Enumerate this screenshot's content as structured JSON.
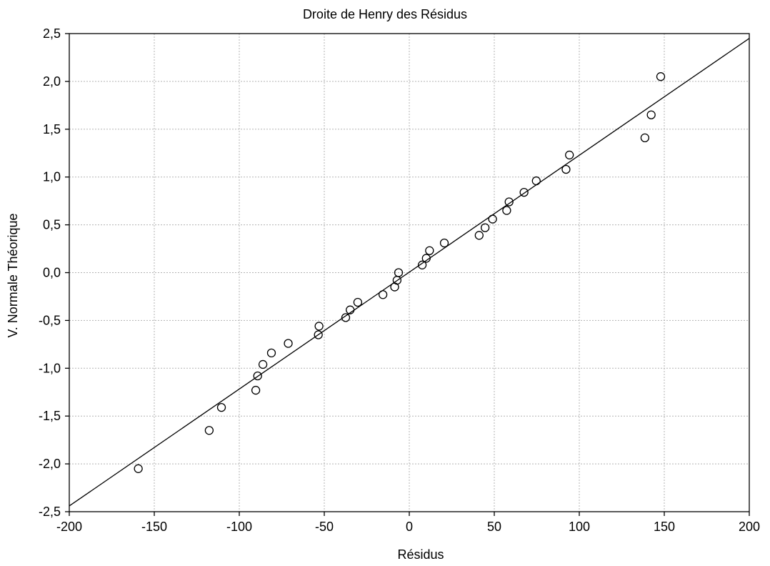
{
  "chart_data": {
    "type": "scatter",
    "title": "Droite de Henry des Résidus",
    "xlabel": "Résidus",
    "ylabel": "V. Normale Théorique",
    "xlim": [
      -200,
      200
    ],
    "ylim": [
      -2.5,
      2.5
    ],
    "xticks": [
      -200,
      -150,
      -100,
      -50,
      0,
      50,
      100,
      150,
      200
    ],
    "xtick_labels": [
      "-200",
      "-150",
      "-100",
      "-50",
      "0",
      "50",
      "100",
      "150",
      "200"
    ],
    "yticks": [
      -2.5,
      -2.0,
      -1.5,
      -1.0,
      -0.5,
      0.0,
      0.5,
      1.0,
      1.5,
      2.0,
      2.5
    ],
    "ytick_labels": [
      "-2,5",
      "-2,0",
      "-1,5",
      "-1,0",
      "-0,5",
      "0,0",
      "0,5",
      "1,0",
      "1,5",
      "2,0",
      "2,5"
    ],
    "grid": true,
    "marker": "open-circle",
    "points": [
      {
        "x": -159.4,
        "y": -2.05
      },
      {
        "x": -117.7,
        "y": -1.65
      },
      {
        "x": -110.5,
        "y": -1.41
      },
      {
        "x": -90.3,
        "y": -1.23
      },
      {
        "x": -89.2,
        "y": -1.08
      },
      {
        "x": -86.1,
        "y": -0.96
      },
      {
        "x": -81.1,
        "y": -0.84
      },
      {
        "x": -71.2,
        "y": -0.74
      },
      {
        "x": -53.5,
        "y": -0.65
      },
      {
        "x": -53.1,
        "y": -0.56
      },
      {
        "x": -37.4,
        "y": -0.47
      },
      {
        "x": -34.8,
        "y": -0.39
      },
      {
        "x": -30.3,
        "y": -0.31
      },
      {
        "x": -15.5,
        "y": -0.23
      },
      {
        "x": -8.6,
        "y": -0.15
      },
      {
        "x": -7.2,
        "y": -0.08
      },
      {
        "x": -6.3,
        "y": 0.0
      },
      {
        "x": 7.6,
        "y": 0.08
      },
      {
        "x": 10.0,
        "y": 0.15
      },
      {
        "x": 11.9,
        "y": 0.23
      },
      {
        "x": 20.6,
        "y": 0.31
      },
      {
        "x": 41.1,
        "y": 0.39
      },
      {
        "x": 44.6,
        "y": 0.47
      },
      {
        "x": 49.0,
        "y": 0.56
      },
      {
        "x": 57.3,
        "y": 0.65
      },
      {
        "x": 58.7,
        "y": 0.74
      },
      {
        "x": 67.5,
        "y": 0.84
      },
      {
        "x": 74.7,
        "y": 0.96
      },
      {
        "x": 92.2,
        "y": 1.08
      },
      {
        "x": 94.2,
        "y": 1.23
      },
      {
        "x": 138.6,
        "y": 1.41
      },
      {
        "x": 142.3,
        "y": 1.65
      },
      {
        "x": 147.9,
        "y": 2.05
      }
    ],
    "fit_line": {
      "x": [
        -200,
        200
      ],
      "y": [
        -2.44,
        2.45
      ]
    }
  }
}
